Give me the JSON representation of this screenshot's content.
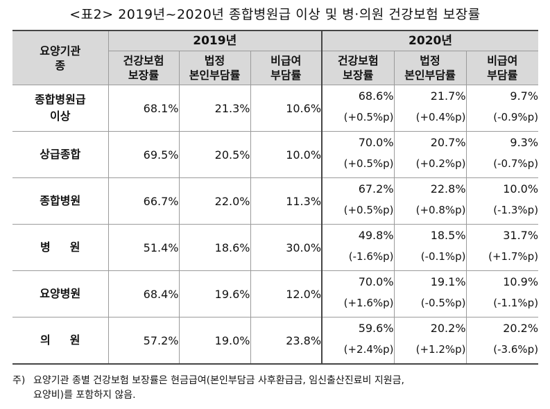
{
  "title": "<표2> 2019년~2020년 종합병원급 이상 및 병·의원 건강보험 보장률",
  "header": {
    "group_col": [
      "요양기관",
      "종"
    ],
    "years": [
      "2019년",
      "2020년"
    ],
    "subcols": [
      [
        "건강보험",
        "보장률"
      ],
      [
        "법정",
        "본인부담률"
      ],
      [
        "비급여",
        "부담률"
      ]
    ]
  },
  "rows": [
    {
      "name": [
        "종합병원급",
        "이상"
      ],
      "y2019": [
        "68.1%",
        "21.3%",
        "10.6%"
      ],
      "y2020": [
        "68.6%",
        "21.7%",
        "9.7%"
      ],
      "change": [
        "(+0.5%p)",
        "(+0.4%p)",
        "(-0.9%p)"
      ]
    },
    {
      "name": [
        "상급종합"
      ],
      "y2019": [
        "69.5%",
        "20.5%",
        "10.0%"
      ],
      "y2020": [
        "70.0%",
        "20.7%",
        "9.3%"
      ],
      "change": [
        "(+0.5%p)",
        "(+0.2%p)",
        "(-0.7%p)"
      ]
    },
    {
      "name": [
        "종합병원"
      ],
      "y2019": [
        "66.7%",
        "22.0%",
        "11.3%"
      ],
      "y2020": [
        "67.2%",
        "22.8%",
        "10.0%"
      ],
      "change": [
        "(+0.5%p)",
        "(+0.8%p)",
        "(-1.3%p)"
      ]
    },
    {
      "name": [
        "병원"
      ],
      "y2019": [
        "51.4%",
        "18.6%",
        "30.0%"
      ],
      "y2020": [
        "49.8%",
        "18.5%",
        "31.7%"
      ],
      "change": [
        "(-1.6%p)",
        "(-0.1%p)",
        "(+1.7%p)"
      ]
    },
    {
      "name": [
        "요양병원"
      ],
      "y2019": [
        "68.4%",
        "19.6%",
        "12.0%"
      ],
      "y2020": [
        "70.0%",
        "19.1%",
        "10.9%"
      ],
      "change": [
        "(+1.6%p)",
        "(-0.5%p)",
        "(-1.1%p)"
      ]
    },
    {
      "name": [
        "의원"
      ],
      "y2019": [
        "57.2%",
        "19.0%",
        "23.8%"
      ],
      "y2020": [
        "59.6%",
        "20.2%",
        "20.2%"
      ],
      "change": [
        "(+2.4%p)",
        "(+1.2%p)",
        "(-3.6%p)"
      ]
    }
  ],
  "note": {
    "label": "주)",
    "line1": "요양기관 종별 건강보험 보장률은 현금급여(본인부담금 사후환급금, 임신출산진료비 지원금,",
    "line2": "요양비)를 포함하지 않음."
  }
}
